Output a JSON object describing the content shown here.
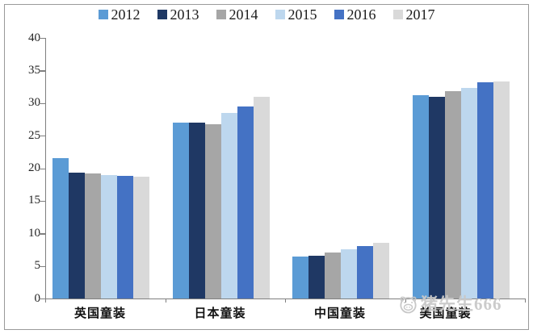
{
  "chart_data": {
    "type": "bar",
    "title": "",
    "xlabel": "",
    "ylabel": "",
    "categories": [
      "英国童装",
      "日本童装",
      "中国童装",
      "美国童装"
    ],
    "series": [
      {
        "name": "2012",
        "color": "#5B9BD5",
        "values": [
          21.5,
          27.0,
          6.5,
          31.2
        ]
      },
      {
        "name": "2013",
        "color": "#1F3864",
        "values": [
          19.3,
          27.0,
          6.6,
          31.0
        ]
      },
      {
        "name": "2014",
        "color": "#A6A6A6",
        "values": [
          19.2,
          26.8,
          7.0,
          31.8
        ]
      },
      {
        "name": "2015",
        "color": "#BDD7EE",
        "values": [
          18.9,
          28.5,
          7.6,
          32.3
        ]
      },
      {
        "name": "2016",
        "color": "#4472C4",
        "values": [
          18.8,
          29.5,
          8.0,
          33.2
        ]
      },
      {
        "name": "2017",
        "color": "#D9D9D9",
        "values": [
          18.7,
          30.9,
          8.5,
          33.3
        ]
      }
    ],
    "ylim": [
      0,
      40
    ],
    "yticks": [
      0,
      5,
      10,
      15,
      20,
      25,
      30,
      35,
      40
    ],
    "grid": false,
    "legend_position": "top"
  },
  "watermark": {
    "text": "猪先生666",
    "icon": "pig-icon",
    "color": "#c9c9c9"
  }
}
